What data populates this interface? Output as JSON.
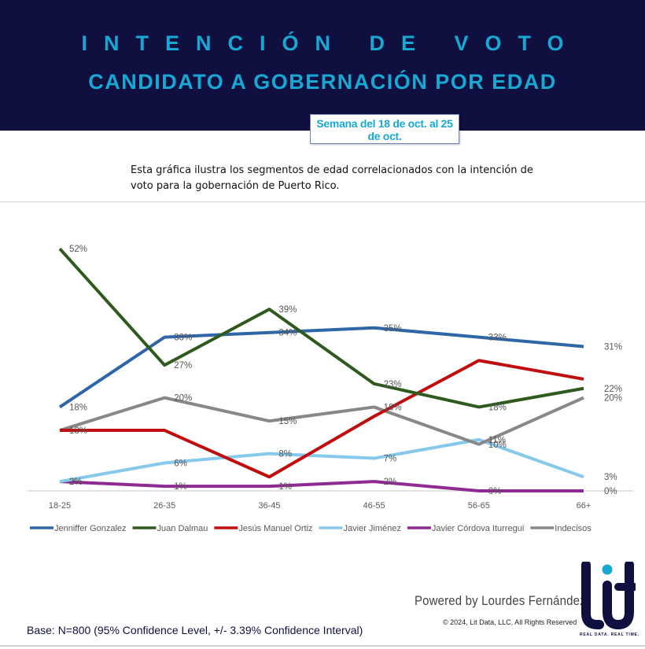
{
  "header": {
    "title_line1": "INTENCIÓN DE VOTO",
    "title_line2": "CANDIDATO A GOBERNACIÓN POR EDAD",
    "week_label": "Semana del 18 de oct. al 25 de oct."
  },
  "description": "Esta gráfica ilustra los segmentos de edad correlacionados con la intención de voto para la gobernación de Puerto Rico.",
  "footer": {
    "powered_by": "Powered by Lourdes Fernández",
    "copyright": "© 2024, Lit Data, LLC, All Rights Reserved",
    "base": "Base: N=800 (95% Confidence Level, +/- 3.39% Confidence Interval)",
    "logo_text": "lit",
    "tagline": "REAL DATA. REAL TIME."
  },
  "colors": {
    "header_bg": "#0f0f40",
    "accent": "#18a8d4"
  },
  "chart_data": {
    "type": "line",
    "title": "Intención de voto - Candidato a gobernación por edad",
    "xlabel": "",
    "ylabel": "",
    "categories": [
      "18-25",
      "26-35",
      "36-45",
      "46-55",
      "56-65",
      "66+"
    ],
    "ylim": [
      0,
      55
    ],
    "grid": false,
    "legend": "bottom",
    "series": [
      {
        "name": "Jenniffer Gonzalez",
        "color": "#2e66a6",
        "values": [
          18,
          33,
          34,
          35,
          33,
          31
        ],
        "labels": [
          "18%",
          "33%",
          "34%",
          "35%",
          "33%",
          "31%"
        ]
      },
      {
        "name": "Juan Dalmau",
        "color": "#2f5a1e",
        "values": [
          52,
          27,
          39,
          23,
          18,
          22
        ],
        "labels": [
          "52%",
          "27%",
          "39%",
          "23%",
          "18%",
          "22%"
        ]
      },
      {
        "name": "Jesús Manuel Ortiz",
        "color": "#c00d0d",
        "values": [
          13,
          13,
          3,
          16,
          28,
          24
        ],
        "labels": [
          "",
          "",
          "",
          "",
          "",
          ""
        ]
      },
      {
        "name": "Javier Jiménez",
        "color": "#86c9ea",
        "values": [
          2,
          6,
          8,
          7,
          11,
          3
        ],
        "labels": [
          "2%",
          "6%",
          "8%",
          "7%",
          "11%",
          "3%"
        ]
      },
      {
        "name": "Javier Córdova Iturregui",
        "color": "#8e2a91",
        "values": [
          2,
          1,
          1,
          2,
          0,
          0
        ],
        "labels": [
          "2%",
          "1%",
          "1%",
          "2%",
          "0%",
          "0%"
        ]
      },
      {
        "name": "Indecisos",
        "color": "#888888",
        "values": [
          13,
          20,
          15,
          18,
          10,
          20
        ],
        "labels": [
          "13%",
          "20%",
          "15%",
          "18%",
          "10%",
          "20%"
        ]
      }
    ]
  }
}
